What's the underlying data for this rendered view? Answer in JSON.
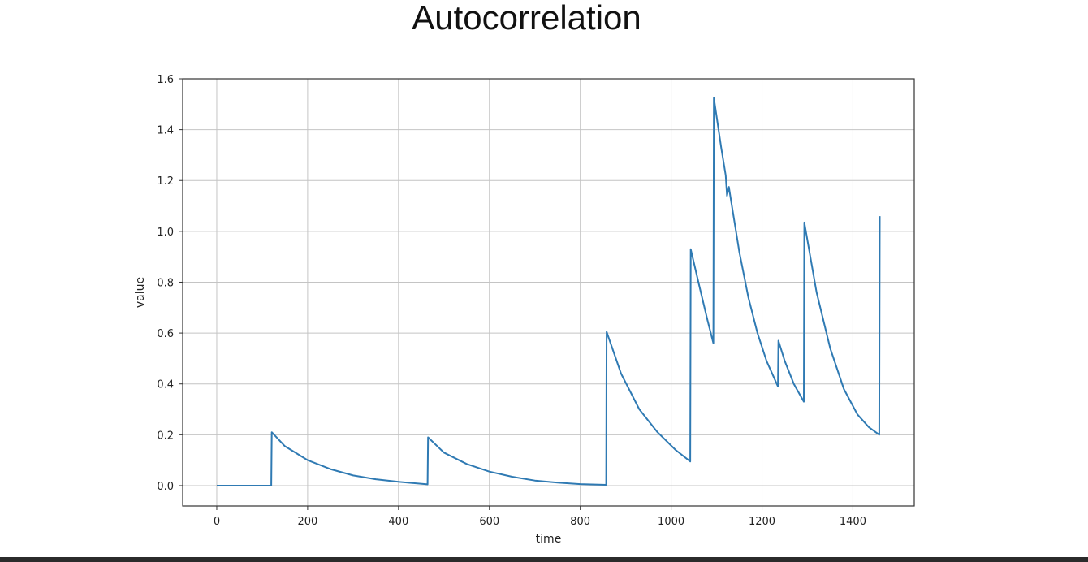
{
  "chart_data": {
    "type": "line",
    "title": "Autocorrelation",
    "xlabel": "time",
    "ylabel": "value",
    "xlim": [
      -75,
      1535
    ],
    "ylim": [
      -0.08,
      1.6
    ],
    "xticks": [
      0,
      200,
      400,
      600,
      800,
      1000,
      1200,
      1400
    ],
    "xtick_labels": [
      "0",
      "200",
      "400",
      "600",
      "800",
      "1000",
      "1200",
      "1400"
    ],
    "yticks": [
      0.0,
      0.2,
      0.4,
      0.6,
      0.8,
      1.0,
      1.2,
      1.4,
      1.6
    ],
    "ytick_labels": [
      "0.0",
      "0.2",
      "0.4",
      "0.6",
      "0.8",
      "1.0",
      "1.2",
      "1.4",
      "1.6"
    ],
    "grid": true,
    "legend": "none",
    "colors": {
      "line": "#2f7ab3",
      "grid": "#c4c4c4",
      "frame": "#333333"
    },
    "series": [
      {
        "x": [
          0,
          120,
          121,
          150,
          200,
          250,
          300,
          350,
          400,
          464,
          465,
          500,
          550,
          600,
          650,
          700,
          750,
          800,
          857,
          858,
          890,
          930,
          970,
          1010,
          1042,
          1043,
          1060,
          1080,
          1093,
          1094,
          1110,
          1120,
          1123,
          1127,
          1131,
          1150,
          1170,
          1190,
          1210,
          1235,
          1236,
          1250,
          1270,
          1292,
          1293,
          1320,
          1350,
          1380,
          1410,
          1435,
          1458,
          1459
        ],
        "y": [
          0.0,
          0.0,
          0.21,
          0.155,
          0.1,
          0.065,
          0.04,
          0.025,
          0.015,
          0.005,
          0.19,
          0.13,
          0.085,
          0.055,
          0.035,
          0.02,
          0.012,
          0.006,
          0.003,
          0.605,
          0.44,
          0.3,
          0.21,
          0.14,
          0.095,
          0.93,
          0.8,
          0.65,
          0.56,
          1.525,
          1.33,
          1.22,
          1.14,
          1.175,
          1.13,
          0.92,
          0.74,
          0.6,
          0.49,
          0.39,
          0.57,
          0.49,
          0.4,
          0.33,
          1.035,
          0.76,
          0.54,
          0.38,
          0.28,
          0.23,
          0.2,
          1.06
        ]
      }
    ]
  }
}
